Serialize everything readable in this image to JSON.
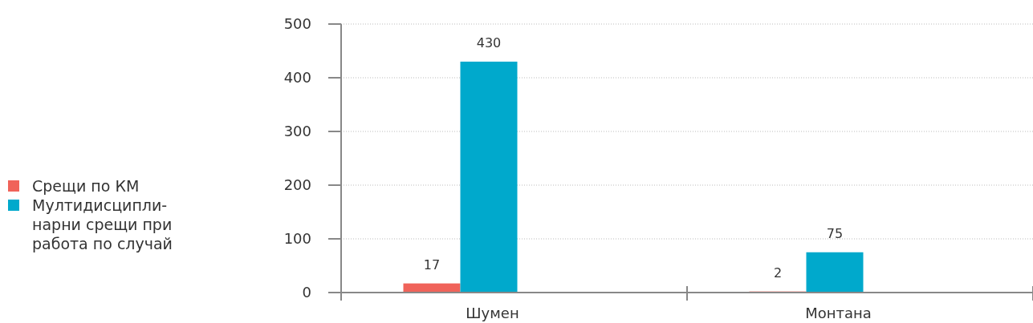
{
  "chart_data": {
    "type": "bar",
    "categories": [
      "Шумен",
      "Монтана"
    ],
    "series": [
      {
        "name": "Срещи по КМ",
        "color": "#f0635a",
        "values": [
          17,
          2
        ]
      },
      {
        "name": "Мултидисципли- нарни срещи при работа по случай",
        "color": "#00a9cc",
        "values": [
          430,
          75
        ]
      }
    ],
    "ylim": [
      0,
      500
    ],
    "yticks": [
      0,
      100,
      200,
      300,
      400,
      500
    ],
    "grid": "y",
    "legend": "left",
    "data_labels": true
  }
}
